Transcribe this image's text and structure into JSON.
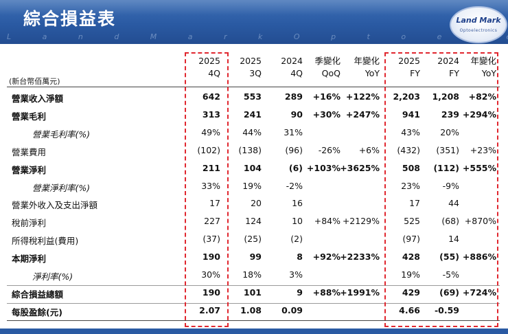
{
  "header": {
    "title": "綜合損益表",
    "watermark": "L a n d M a r k   O p t o e l e c t r o n i c s   C o r p o r a t i o n",
    "logo_main": "Land Mark",
    "logo_sub": "Optoelectronics"
  },
  "table": {
    "unit_label": "(新台幣佰萬元)",
    "columns": [
      {
        "line1": "2025",
        "line2": "4Q"
      },
      {
        "line1": "2025",
        "line2": "3Q"
      },
      {
        "line1": "2024",
        "line2": "4Q"
      },
      {
        "line1": "季變化",
        "line2": "QoQ"
      },
      {
        "line1": "年變化",
        "line2": "YoY"
      },
      {
        "line1": "2025",
        "line2": "FY"
      },
      {
        "line1": "2024",
        "line2": "FY"
      },
      {
        "line1": "年變化",
        "line2": "YoY"
      }
    ],
    "rows": [
      {
        "label": "營業收入淨額",
        "values": [
          "642",
          "553",
          "289",
          "+16%",
          "+122%",
          "2,203",
          "1,208",
          "+82%"
        ]
      },
      {
        "label": "營業毛利",
        "values": [
          "313",
          "241",
          "90",
          "+30%",
          "+247%",
          "941",
          "239",
          "+294%"
        ]
      },
      {
        "label": "營業毛利率(%)",
        "values": [
          "49%",
          "44%",
          "31%",
          "",
          "",
          "43%",
          "20%",
          ""
        ]
      },
      {
        "label": "營業費用",
        "values": [
          "(102)",
          "(138)",
          "(96)",
          "-26%",
          "+6%",
          "(432)",
          "(351)",
          "+23%"
        ]
      },
      {
        "label": "營業淨利",
        "values": [
          "211",
          "104",
          "(6)",
          "+103%",
          "+3625%",
          "508",
          "(112)",
          "+555%"
        ]
      },
      {
        "label": "營業淨利率(%)",
        "values": [
          "33%",
          "19%",
          "-2%",
          "",
          "",
          "23%",
          "-9%",
          ""
        ]
      },
      {
        "label": "營業外收入及支出淨額",
        "values": [
          "17",
          "20",
          "16",
          "",
          "",
          "17",
          "44",
          ""
        ]
      },
      {
        "label": "稅前淨利",
        "values": [
          "227",
          "124",
          "10",
          "+84%",
          "+2129%",
          "525",
          "(68)",
          "+870%"
        ]
      },
      {
        "label": "所得稅利益(費用)",
        "values": [
          "(37)",
          "(25)",
          "(2)",
          "",
          "",
          "(97)",
          "14",
          ""
        ]
      },
      {
        "label": "本期淨利",
        "values": [
          "190",
          "99",
          "8",
          "+92%",
          "+2233%",
          "428",
          "(55)",
          "+886%"
        ]
      },
      {
        "label": "淨利率(%)",
        "values": [
          "30%",
          "18%",
          "3%",
          "",
          "",
          "19%",
          "-5%",
          ""
        ]
      },
      {
        "label": "綜合損益總額",
        "values": [
          "190",
          "101",
          "9",
          "+88%",
          "+1991%",
          "429",
          "(69)",
          "+724%"
        ]
      },
      {
        "label": "每股盈餘(元)",
        "values": [
          "2.07",
          "1.08",
          "0.09",
          "",
          "",
          "4.66",
          "-0.59",
          ""
        ]
      }
    ]
  }
}
